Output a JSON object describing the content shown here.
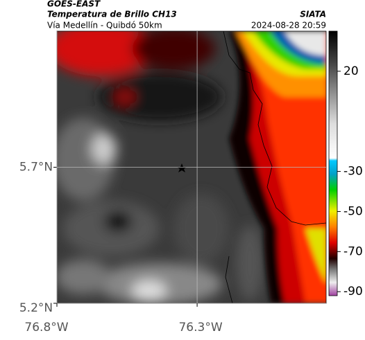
{
  "header": {
    "title": "GOES-EAST",
    "subtitle": "Temperatura de Brillo CH13",
    "route": "Vía Medellín - Quibdó 50km",
    "source": "SIATA",
    "timestamp": "2024-08-28 20:59"
  },
  "map": {
    "xlim": [
      -76.8,
      -75.84
    ],
    "ylim": [
      5.2,
      6.2
    ],
    "lat_ticks": [
      {
        "value": 5.7,
        "label": "5.7°N"
      },
      {
        "value": 5.2,
        "label": "5.2°N"
      }
    ],
    "lon_ticks": [
      {
        "value": -76.8,
        "label": "76.8°W"
      },
      {
        "value": -76.3,
        "label": "76.3°W"
      }
    ],
    "grid": true
  },
  "colorbar": {
    "clim": [
      -92,
      40
    ],
    "ticks": [
      20,
      -30,
      -50,
      -70,
      -90
    ]
  }
}
